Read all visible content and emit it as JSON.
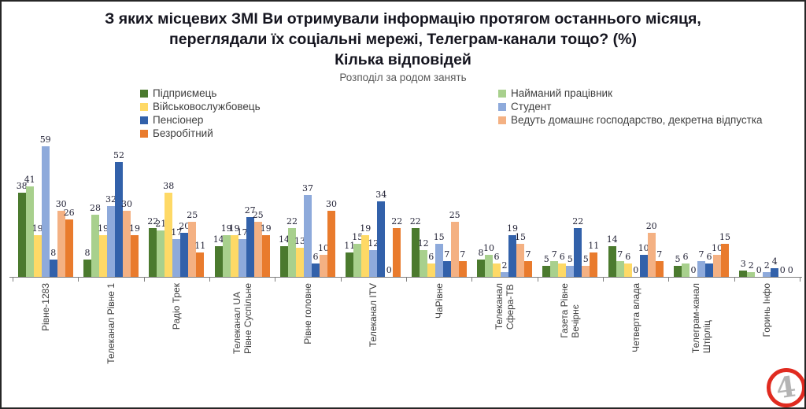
{
  "header": {
    "title_line1": "З яких місцевих ЗМІ Ви отримували інформацію протягом останнього місяця,",
    "title_line2": "переглядали їх соціальні мережі, Телеграм-канали тощо? (%)",
    "title_line3": "Кілька відповідей",
    "subtitle": "Розподіл за родом занять"
  },
  "chart_data": {
    "type": "bar",
    "title": "З яких місцевих ЗМІ Ви отримували інформацію протягом останнього місяця, переглядали їх соціальні мережі, Телеграм-канали тощо? (%) Кілька відповідей",
    "subtitle": "Розподіл за родом занять",
    "xlabel": "",
    "ylabel": "",
    "ylim": [
      0,
      59
    ],
    "grid": false,
    "data_labels": true,
    "legend_position": "top-two-columns",
    "legend_columns": {
      "left": [
        0,
        2,
        4,
        6
      ],
      "right": [
        1,
        3,
        5
      ]
    },
    "categories": [
      "Рівне-1283",
      "Телеканал Рівне 1",
      "Радіо Трек",
      "Телеканал UA\nРівне Суспільне",
      "Рівне головне",
      "Телеканал ITV",
      "ЧаРівне",
      "Телеканал\nСфера-ТВ",
      "Газета Рівне\nВечірнє",
      "Четверта влада",
      "Телеграм-канал\nШтірліц",
      "Горинь Інфо"
    ],
    "series": [
      {
        "name": "Підприємець",
        "color": "#4b7a2e",
        "values": [
          38,
          8,
          22,
          14,
          14,
          11,
          22,
          8,
          5,
          14,
          5,
          3
        ]
      },
      {
        "name": "Найманий працівник",
        "color": "#a8d08d",
        "values": [
          41,
          28,
          21,
          19,
          22,
          15,
          12,
          10,
          7,
          7,
          6,
          2
        ]
      },
      {
        "name": "Військовослужбовець",
        "color": "#fed966",
        "values": [
          19,
          19,
          38,
          19,
          13,
          19,
          6,
          6,
          6,
          6,
          0,
          0
        ]
      },
      {
        "name": "Студент",
        "color": "#8eaadb",
        "values": [
          59,
          32,
          17,
          17,
          37,
          12,
          15,
          2,
          5,
          0,
          7,
          2
        ]
      },
      {
        "name": "Пенсіонер",
        "color": "#3261aa",
        "values": [
          8,
          52,
          20,
          27,
          6,
          34,
          7,
          19,
          22,
          10,
          6,
          4
        ]
      },
      {
        "name": "Ведуть домашнє господарство, декретна відпустка",
        "color": "#f4b183",
        "values": [
          30,
          30,
          25,
          25,
          10,
          0,
          25,
          15,
          5,
          20,
          10,
          0
        ]
      },
      {
        "name": "Безробітний",
        "color": "#e97b2d",
        "values": [
          26,
          19,
          11,
          19,
          30,
          22,
          7,
          7,
          11,
          7,
          15,
          0
        ]
      }
    ]
  },
  "logo": {
    "digit": "4",
    "ring_color": "#e02b20",
    "digit_color": "#b4b4b4"
  }
}
